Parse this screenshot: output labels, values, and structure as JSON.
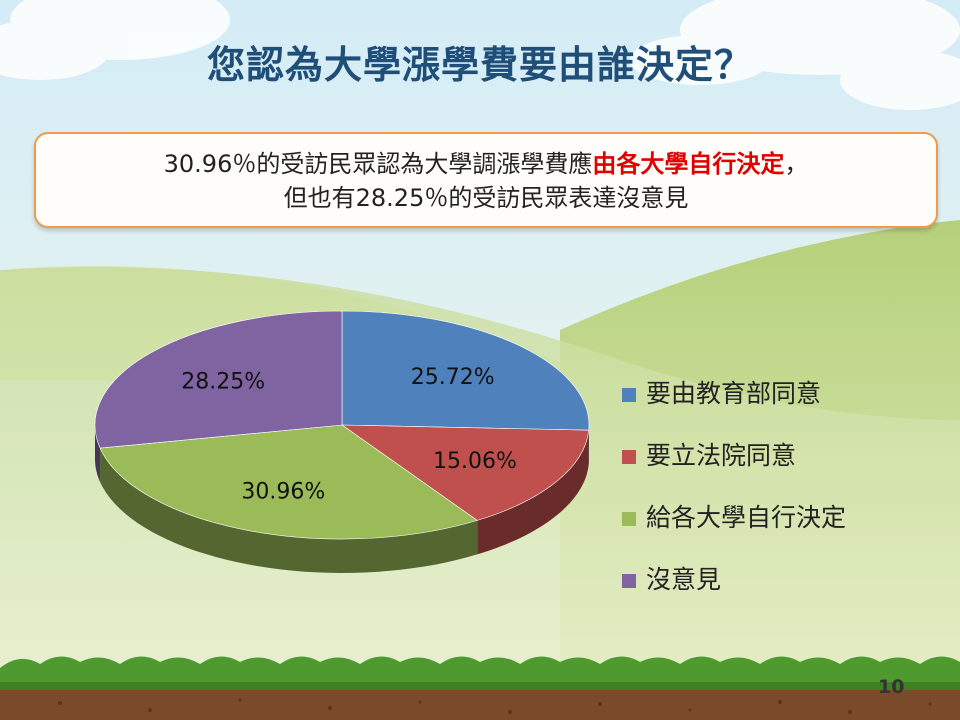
{
  "slide": {
    "title": "您認為大學漲學費要由誰決定？",
    "callout": {
      "line1_prefix": "30.96％的受訪民眾認為大學調漲學費應",
      "line1_highlight": "由各大學自行決定",
      "line1_suffix": "，",
      "line2": "但也有28.25％的受訪民眾表達沒意見"
    },
    "page_number": "10"
  },
  "chart_data": {
    "type": "pie",
    "categories": [
      "要由教育部同意",
      "要立法院同意",
      "給各大學自行決定",
      "沒意見"
    ],
    "values": [
      25.72,
      15.06,
      30.96,
      28.25
    ],
    "data_labels": [
      "25.72%",
      "15.06%",
      "30.96%",
      "28.25%"
    ],
    "colors": [
      "#4f81bd",
      "#c0504d",
      "#9bbb59",
      "#8064a2"
    ],
    "legend_position": "right",
    "style": "3d"
  }
}
